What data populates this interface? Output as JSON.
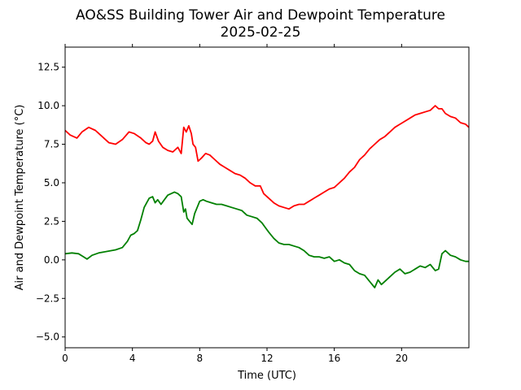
{
  "chart_data": {
    "type": "line",
    "title": "AO&SS Building Tower Air and Dewpoint Temperature",
    "subtitle": "2025-02-25",
    "xlabel": "Time (UTC)",
    "ylabel": "Air and Dewpoint Temperature (°C)",
    "xlim": [
      0,
      24
    ],
    "ylim": [
      -5.7,
      13.8
    ],
    "grid": false,
    "x_ticks": [
      0,
      4,
      8,
      12,
      16,
      20
    ],
    "x_tick_labels": [
      "0",
      "4",
      "8",
      "12",
      "16",
      "20"
    ],
    "y_ticks": [
      -5.0,
      -2.5,
      0.0,
      2.5,
      5.0,
      7.5,
      10.0,
      12.5
    ],
    "y_tick_labels": [
      "−5.0",
      "−2.5",
      "0.0",
      "2.5",
      "5.0",
      "7.5",
      "10.0",
      "12.5"
    ],
    "series": [
      {
        "color": "#ff0000",
        "x": [
          0,
          0.3,
          0.7,
          1.0,
          1.4,
          1.8,
          2.2,
          2.6,
          3.0,
          3.4,
          3.8,
          4.1,
          4.5,
          4.8,
          5.0,
          5.2,
          5.35,
          5.55,
          5.8,
          6.1,
          6.4,
          6.7,
          6.9,
          7.05,
          7.2,
          7.35,
          7.5,
          7.6,
          7.75,
          7.9,
          8.1,
          8.35,
          8.6,
          8.9,
          9.2,
          9.5,
          9.8,
          10.1,
          10.4,
          10.7,
          11.0,
          11.3,
          11.6,
          11.8,
          12.1,
          12.4,
          12.7,
          13.0,
          13.3,
          13.6,
          13.9,
          14.2,
          14.5,
          14.8,
          15.1,
          15.4,
          15.7,
          16.0,
          16.3,
          16.6,
          16.9,
          17.2,
          17.5,
          17.8,
          18.1,
          18.4,
          18.7,
          19.0,
          19.3,
          19.6,
          19.9,
          20.2,
          20.5,
          20.8,
          21.1,
          21.4,
          21.7,
          22.0,
          22.2,
          22.4,
          22.6,
          22.9,
          23.2,
          23.5,
          23.8,
          24.0
        ],
        "values": [
          8.4,
          8.1,
          7.9,
          8.3,
          8.6,
          8.4,
          8.0,
          7.6,
          7.5,
          7.8,
          8.3,
          8.2,
          7.9,
          7.6,
          7.5,
          7.7,
          8.3,
          7.7,
          7.3,
          7.1,
          7.0,
          7.3,
          6.9,
          8.6,
          8.3,
          8.7,
          8.2,
          7.5,
          7.3,
          6.4,
          6.6,
          6.9,
          6.8,
          6.5,
          6.2,
          6.0,
          5.8,
          5.6,
          5.5,
          5.3,
          5.0,
          4.8,
          4.8,
          4.3,
          4.0,
          3.7,
          3.5,
          3.4,
          3.3,
          3.5,
          3.6,
          3.6,
          3.8,
          4.0,
          4.2,
          4.4,
          4.6,
          4.7,
          5.0,
          5.3,
          5.7,
          6.0,
          6.5,
          6.8,
          7.2,
          7.5,
          7.8,
          8.0,
          8.3,
          8.6,
          8.8,
          9.0,
          9.2,
          9.4,
          9.5,
          9.6,
          9.7,
          10.0,
          9.8,
          9.8,
          9.5,
          9.3,
          9.2,
          8.9,
          8.8,
          8.6
        ]
      },
      {
        "color": "#008000",
        "x": [
          0,
          0.4,
          0.8,
          1.1,
          1.3,
          1.6,
          2.0,
          2.5,
          3.0,
          3.4,
          3.7,
          3.9,
          4.1,
          4.3,
          4.5,
          4.7,
          4.85,
          5.0,
          5.2,
          5.35,
          5.5,
          5.7,
          5.9,
          6.1,
          6.3,
          6.5,
          6.7,
          6.9,
          7.05,
          7.15,
          7.25,
          7.4,
          7.55,
          7.7,
          7.85,
          8.0,
          8.2,
          8.4,
          8.7,
          9.0,
          9.3,
          9.6,
          9.9,
          10.2,
          10.5,
          10.8,
          11.1,
          11.4,
          11.7,
          11.9,
          12.1,
          12.4,
          12.7,
          13.0,
          13.3,
          13.6,
          13.9,
          14.2,
          14.5,
          14.8,
          15.1,
          15.4,
          15.7,
          16.0,
          16.3,
          16.6,
          16.9,
          17.2,
          17.5,
          17.8,
          18.1,
          18.4,
          18.6,
          18.8,
          19.0,
          19.3,
          19.6,
          19.9,
          20.2,
          20.5,
          20.8,
          21.1,
          21.4,
          21.7,
          22.0,
          22.2,
          22.4,
          22.6,
          22.9,
          23.2,
          23.5,
          23.8,
          24.0
        ],
        "values": [
          0.4,
          0.45,
          0.4,
          0.2,
          0.05,
          0.3,
          0.45,
          0.55,
          0.65,
          0.8,
          1.2,
          1.6,
          1.7,
          1.9,
          2.6,
          3.4,
          3.7,
          4.0,
          4.1,
          3.7,
          3.9,
          3.6,
          3.9,
          4.2,
          4.3,
          4.4,
          4.3,
          4.1,
          3.1,
          3.3,
          2.7,
          2.5,
          2.3,
          3.0,
          3.4,
          3.8,
          3.9,
          3.8,
          3.7,
          3.6,
          3.6,
          3.5,
          3.4,
          3.3,
          3.2,
          2.9,
          2.8,
          2.7,
          2.4,
          2.1,
          1.8,
          1.4,
          1.1,
          1.0,
          1.0,
          0.9,
          0.8,
          0.6,
          0.3,
          0.2,
          0.2,
          0.1,
          0.2,
          -0.1,
          0.0,
          -0.2,
          -0.3,
          -0.7,
          -0.9,
          -1.0,
          -1.4,
          -1.8,
          -1.3,
          -1.6,
          -1.4,
          -1.1,
          -0.8,
          -0.6,
          -0.9,
          -0.8,
          -0.6,
          -0.4,
          -0.5,
          -0.3,
          -0.7,
          -0.6,
          0.4,
          0.6,
          0.3,
          0.2,
          0.0,
          -0.1,
          -0.1
        ]
      }
    ]
  }
}
